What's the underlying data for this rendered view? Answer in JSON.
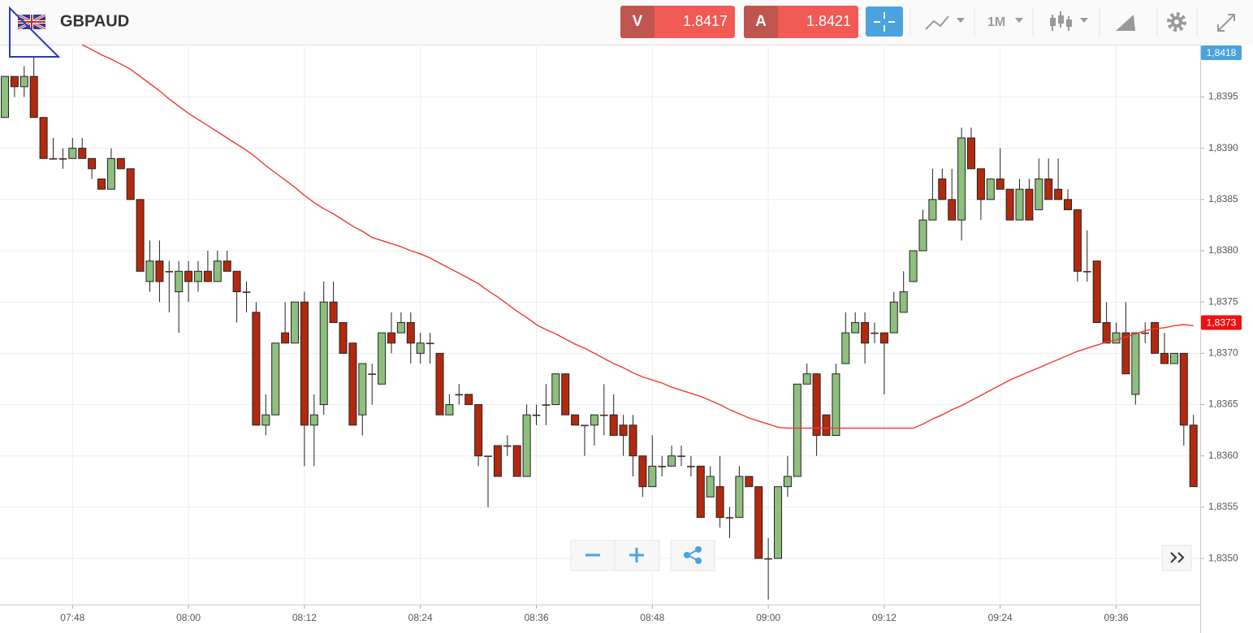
{
  "header": {
    "symbol": "GBPAUD",
    "sell_label": "V",
    "sell_price": 1.8417,
    "buy_label": "A",
    "buy_price": 1.8421,
    "timeframe": "1M"
  },
  "chart_data": {
    "type": "candlestick",
    "categories": [
      null,
      null,
      null,
      null,
      null,
      null,
      null,
      "07:48",
      null,
      null,
      null,
      null,
      null,
      null,
      null,
      null,
      null,
      null,
      null,
      "08:00",
      null,
      null,
      null,
      null,
      null,
      null,
      null,
      null,
      null,
      null,
      null,
      "08:12",
      null,
      null,
      null,
      null,
      null,
      null,
      null,
      null,
      null,
      null,
      null,
      "08:24",
      null,
      null,
      null,
      null,
      null,
      null,
      null,
      null,
      null,
      null,
      null,
      "08:36",
      null,
      null,
      null,
      null,
      null,
      null,
      null,
      null,
      null,
      null,
      null,
      "08:48",
      null,
      null,
      null,
      null,
      null,
      null,
      null,
      null,
      null,
      null,
      null,
      "09:00",
      null,
      null,
      null,
      null,
      null,
      null,
      null,
      null,
      null,
      null,
      null,
      "09:12",
      null,
      null,
      null,
      null,
      null,
      null,
      null,
      null,
      null,
      null,
      null,
      "09:24",
      null,
      null,
      null,
      null,
      null,
      null,
      null,
      null,
      null,
      null,
      null,
      "09:36",
      null,
      null,
      null,
      null,
      null,
      null,
      null,
      null
    ],
    "open": [
      1.8393,
      1.8397,
      1.8396,
      1.8397,
      1.8393,
      1.8389,
      1.8389,
      1.8389,
      1.839,
      1.8389,
      1.8387,
      1.8386,
      1.8389,
      1.8388,
      1.8385,
      1.8377,
      1.8379,
      1.8378,
      1.8376,
      1.8378,
      1.8377,
      1.8378,
      1.8377,
      1.8379,
      1.8378,
      1.8376,
      1.8374,
      1.8363,
      1.8364,
      1.8372,
      1.8371,
      1.8375,
      1.8363,
      1.8365,
      1.8375,
      1.8373,
      1.8371,
      1.8364,
      1.8368,
      1.8367,
      1.8372,
      1.8372,
      1.8373,
      1.837,
      1.8371,
      1.837,
      1.8364,
      1.8366,
      1.8366,
      1.8365,
      1.836,
      1.8361,
      1.8361,
      1.8361,
      1.8358,
      1.8364,
      1.8365,
      1.8365,
      1.8368,
      1.8364,
      1.8363,
      1.8363,
      1.8364,
      1.8364,
      1.8363,
      1.8363,
      1.836,
      1.8357,
      1.8359,
      1.8359,
      1.836,
      1.8359,
      1.8359,
      1.8356,
      1.8357,
      1.8354,
      1.8354,
      1.8358,
      1.8357,
      1.835,
      1.835,
      1.8357,
      1.8358,
      1.8367,
      1.8368,
      1.8364,
      1.8362,
      1.8369,
      1.8372,
      1.8373,
      1.8372,
      1.8372,
      1.8372,
      1.8374,
      1.8377,
      1.838,
      1.8383,
      1.8387,
      1.8385,
      1.8383,
      1.8391,
      1.8388,
      1.8385,
      1.8387,
      1.8386,
      1.8383,
      1.8386,
      1.8384,
      1.8387,
      1.8386,
      1.8385,
      1.8384,
      1.8378,
      1.8379,
      1.8373,
      1.8371,
      1.8372,
      1.8366,
      1.8372,
      1.8373,
      1.837,
      1.8369,
      1.837,
      1.8363
    ],
    "high": [
      1.8397,
      1.8397,
      1.8398,
      1.8399,
      1.8393,
      1.8391,
      1.839,
      1.8391,
      1.8391,
      1.8389,
      1.8387,
      1.839,
      1.8389,
      1.8388,
      1.8385,
      1.8381,
      1.8381,
      1.8379,
      1.8379,
      1.8379,
      1.8379,
      1.838,
      1.838,
      1.838,
      1.8378,
      1.8377,
      1.8375,
      1.8366,
      1.8371,
      1.8375,
      1.8375,
      1.8376,
      1.8366,
      1.8377,
      1.8377,
      1.8373,
      1.8371,
      1.8369,
      1.8369,
      1.8372,
      1.8374,
      1.8374,
      1.8374,
      1.8372,
      1.8372,
      1.837,
      1.8366,
      1.8367,
      1.8366,
      1.8365,
      1.836,
      1.8361,
      1.8362,
      1.8361,
      1.8365,
      1.8365,
      1.8367,
      1.8368,
      1.8368,
      1.8364,
      1.8363,
      1.8364,
      1.8367,
      1.8366,
      1.8364,
      1.8364,
      1.836,
      1.8362,
      1.836,
      1.8361,
      1.8361,
      1.836,
      1.8359,
      1.8359,
      1.836,
      1.8355,
      1.8359,
      1.8358,
      1.8357,
      1.8352,
      1.8357,
      1.836,
      1.8367,
      1.8369,
      1.8368,
      1.8364,
      1.8369,
      1.8374,
      1.8374,
      1.8374,
      1.8373,
      1.8372,
      1.8376,
      1.8378,
      1.838,
      1.8384,
      1.8388,
      1.8388,
      1.8388,
      1.8392,
      1.8392,
      1.8388,
      1.8387,
      1.839,
      1.8386,
      1.8387,
      1.8387,
      1.8389,
      1.8389,
      1.8389,
      1.8386,
      1.8384,
      1.8382,
      1.8379,
      1.8375,
      1.8373,
      1.8375,
      1.8372,
      1.8373,
      1.8373,
      1.8372,
      1.837,
      1.837,
      1.8364
    ],
    "low": [
      1.8393,
      1.8395,
      1.8395,
      1.8393,
      1.8389,
      1.8389,
      1.8388,
      1.8389,
      1.8389,
      1.8387,
      1.8386,
      1.8386,
      1.8388,
      1.8385,
      1.8378,
      1.8376,
      1.8375,
      1.8374,
      1.8372,
      1.8375,
      1.8376,
      1.8377,
      1.8377,
      1.8378,
      1.8373,
      1.8374,
      1.8363,
      1.8362,
      1.8364,
      1.8371,
      1.8371,
      1.8359,
      1.8359,
      1.8364,
      1.8373,
      1.837,
      1.8363,
      1.8362,
      1.8365,
      1.8367,
      1.837,
      1.8372,
      1.8369,
      1.8369,
      1.8369,
      1.8364,
      1.8364,
      1.8365,
      1.8365,
      1.8359,
      1.8355,
      1.8358,
      1.836,
      1.8358,
      1.8358,
      1.8363,
      1.8363,
      1.8365,
      1.8364,
      1.8363,
      1.836,
      1.8361,
      1.8362,
      1.8362,
      1.836,
      1.8358,
      1.8356,
      1.8357,
      1.8358,
      1.8359,
      1.8359,
      1.8358,
      1.8354,
      1.8356,
      1.8353,
      1.8352,
      1.8354,
      1.8357,
      1.835,
      1.8346,
      1.835,
      1.8356,
      1.8358,
      1.8367,
      1.836,
      1.8362,
      1.8362,
      1.8369,
      1.8372,
      1.8369,
      1.8371,
      1.8366,
      1.8372,
      1.8374,
      1.8377,
      1.838,
      1.8383,
      1.8385,
      1.8383,
      1.8381,
      1.8388,
      1.8383,
      1.8385,
      1.8386,
      1.8383,
      1.8383,
      1.8383,
      1.8384,
      1.8385,
      1.8385,
      1.8384,
      1.8377,
      1.8377,
      1.8373,
      1.8371,
      1.8371,
      1.8368,
      1.8365,
      1.8371,
      1.837,
      1.8369,
      1.8369,
      1.8361,
      1.8357
    ],
    "close": [
      1.8397,
      1.8396,
      1.8397,
      1.8393,
      1.8389,
      1.8389,
      1.8389,
      1.839,
      1.8389,
      1.8388,
      1.8386,
      1.8389,
      1.8388,
      1.8385,
      1.8378,
      1.8379,
      1.8377,
      1.8378,
      1.8378,
      1.8377,
      1.8378,
      1.8377,
      1.8379,
      1.8378,
      1.8376,
      1.8376,
      1.8363,
      1.8364,
      1.8371,
      1.8371,
      1.8375,
      1.8363,
      1.8364,
      1.8375,
      1.8373,
      1.837,
      1.8363,
      1.8369,
      1.8368,
      1.8372,
      1.8371,
      1.8373,
      1.8371,
      1.8371,
      1.8371,
      1.8364,
      1.8365,
      1.8366,
      1.8365,
      1.836,
      1.836,
      1.8358,
      1.8361,
      1.8358,
      1.8364,
      1.8364,
      1.8365,
      1.8368,
      1.8364,
      1.8363,
      1.8363,
      1.8364,
      1.8364,
      1.8362,
      1.8362,
      1.836,
      1.8357,
      1.8359,
      1.8359,
      1.836,
      1.836,
      1.8359,
      1.8354,
      1.8358,
      1.8354,
      1.8354,
      1.8358,
      1.8357,
      1.835,
      1.835,
      1.8357,
      1.8358,
      1.8367,
      1.8368,
      1.8362,
      1.8362,
      1.8368,
      1.8372,
      1.8373,
      1.8371,
      1.8372,
      1.8371,
      1.8375,
      1.8376,
      1.838,
      1.8383,
      1.8385,
      1.8385,
      1.8383,
      1.8391,
      1.8388,
      1.8385,
      1.8387,
      1.8386,
      1.8383,
      1.8386,
      1.8383,
      1.8387,
      1.8385,
      1.8385,
      1.8384,
      1.8378,
      1.8378,
      1.8373,
      1.8371,
      1.8372,
      1.8368,
      1.8372,
      1.8372,
      1.837,
      1.8369,
      1.837,
      1.8363,
      1.8357
    ],
    "up_color": "#8fbf7e",
    "down_color": "#b3290e",
    "moving_average": {
      "color": "#f03a30",
      "values": [
        null,
        null,
        null,
        null,
        null,
        null,
        null,
        null,
        1.84001,
        1.83996,
        1.83991,
        1.83987,
        1.83982,
        1.83977,
        1.8397,
        1.83963,
        1.83956,
        1.83948,
        1.83941,
        1.83934,
        1.83928,
        1.83922,
        1.83916,
        1.8391,
        1.83904,
        1.83898,
        1.83891,
        1.83883,
        1.83876,
        1.83869,
        1.83862,
        1.83854,
        1.83847,
        1.83841,
        1.83836,
        1.8383,
        1.83824,
        1.83819,
        1.83813,
        1.8381,
        1.83807,
        1.83804,
        1.838,
        1.83797,
        1.83793,
        1.83788,
        1.83783,
        1.83778,
        1.83773,
        1.83768,
        1.83761,
        1.83755,
        1.83748,
        1.83741,
        1.83735,
        1.83728,
        1.83723,
        1.83719,
        1.83714,
        1.83709,
        1.83705,
        1.837,
        1.83695,
        1.8369,
        1.83686,
        1.83681,
        1.83677,
        1.83674,
        1.83671,
        1.83667,
        1.83664,
        1.83661,
        1.83658,
        1.83654,
        1.8365,
        1.83645,
        1.83641,
        1.83637,
        1.83634,
        1.83631,
        1.83628,
        1.83627,
        1.83627,
        1.83627,
        1.83627,
        1.83627,
        1.83627,
        1.83627,
        1.83627,
        1.83627,
        1.83627,
        1.83627,
        1.83627,
        1.83627,
        1.83627,
        1.83631,
        1.83636,
        1.8364,
        1.83645,
        1.83649,
        1.83654,
        1.83659,
        1.83664,
        1.83669,
        1.83674,
        1.83678,
        1.83682,
        1.83686,
        1.8369,
        1.83694,
        1.83698,
        1.83702,
        1.83705,
        1.83708,
        1.83711,
        1.83713,
        1.83716,
        1.83719,
        1.83722,
        1.83724,
        1.83725,
        1.83727,
        1.83728,
        1.83727
      ]
    },
    "ylim": [
      1.83455,
      1.84001
    ],
    "yticks": [
      {
        "value": 1.835,
        "label": "1,8350"
      },
      {
        "value": 1.8355,
        "label": "1,8355"
      },
      {
        "value": 1.836,
        "label": "1,8360"
      },
      {
        "value": 1.8365,
        "label": "1,8365"
      },
      {
        "value": 1.837,
        "label": "1,8370"
      },
      {
        "value": 1.8375,
        "label": "1,8375"
      },
      {
        "value": 1.838,
        "label": "1,8380"
      },
      {
        "value": 1.8385,
        "label": "1,8385"
      },
      {
        "value": 1.839,
        "label": "1,8390"
      },
      {
        "value": 1.8395,
        "label": "1,8395"
      }
    ],
    "price_tags": [
      {
        "value": 1.8418,
        "label": "1,8418",
        "color": "#4aa3df"
      },
      {
        "value": 1.8373,
        "label": "1,8373",
        "color": "#ee1111"
      }
    ],
    "grid": true
  }
}
